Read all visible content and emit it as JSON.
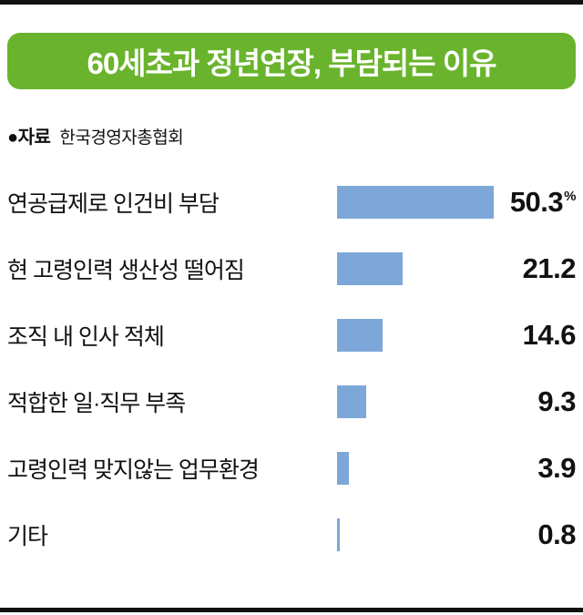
{
  "header": {
    "title": "60세초과 정년연장, 부담되는 이유",
    "source_label": "●자료",
    "source_value": "한국경영자총협회"
  },
  "chart_data": {
    "type": "bar",
    "orientation": "horizontal",
    "title": "60세초과 정년연장, 부담되는 이유",
    "source": "한국경영자총협회",
    "categories": [
      "연공급제로 인건비 부담",
      "현 고령인력 생산성 떨어짐",
      "조직 내 인사 적체",
      "적합한 일·직무 부족",
      "고령인력 맞지않는 업무환경",
      "기타"
    ],
    "values": [
      50.3,
      21.2,
      14.6,
      9.3,
      3.9,
      0.8
    ],
    "unit": "%",
    "xlim": [
      0,
      50.3
    ],
    "grid": false,
    "legend": "none",
    "bar_color": "#7da7d8",
    "title_bg_color": "#6ab42d",
    "rule_color": "#111111"
  }
}
